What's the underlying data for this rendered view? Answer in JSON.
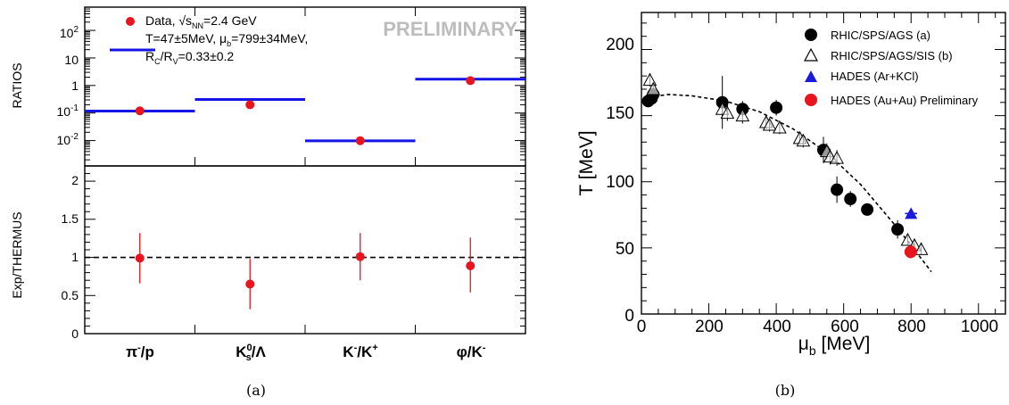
{
  "figure": {
    "caption_a": "(a)",
    "caption_b": "(b)"
  },
  "chart_data": [
    {
      "id": "a",
      "type": "scatter",
      "panels": [
        {
          "name": "ratios",
          "ylabel": "RATIOS",
          "yscale": "log",
          "ylim": [
            0.0012,
            700
          ],
          "ytick_labels": [
            "10^-2",
            "10^-1",
            "1",
            "10",
            "10^2"
          ],
          "categories": [
            "π⁻/p",
            "K⁰s/Λ",
            "K⁻/K⁺",
            "φ/K⁻"
          ],
          "legend": {
            "entry": "Data, √s_NN=2.4 GeV",
            "fit_line1": "T=47±5MeV, μ_b=799±34MeV,",
            "fit_line2": "R_C/R_V=0.33±0.2",
            "placement": "top-left"
          },
          "watermark": "PRELIMINARY",
          "series": [
            {
              "name": "Data",
              "values": [
                0.12,
                0.2,
                0.0099,
                1.5
              ],
              "color": "#e8141e"
            },
            {
              "name": "THERMUS",
              "values": [
                0.118,
                0.31,
                0.0098,
                1.7
              ],
              "color": "#1414e6"
            }
          ],
          "extra_line": {
            "value": 22,
            "category": 0
          }
        },
        {
          "name": "ratio_to_model",
          "ylabel": "Exp/THERMUS",
          "ylim": [
            0,
            2.2
          ],
          "ytick_labels": [
            "0",
            "0.5",
            "1",
            "1.5",
            "2"
          ],
          "reference_line": 1,
          "series": [
            {
              "name": "Exp/THERMUS",
              "values": [
                0.99,
                0.65,
                1.01,
                0.89
              ],
              "err_low": [
                0.33,
                0.33,
                0.31,
                0.35
              ],
              "err_high": [
                0.33,
                0.33,
                0.31,
                0.37
              ],
              "color": "#e8141e"
            }
          ],
          "xtick_labels": [
            "π⁻/p",
            "K⁰s/Λ",
            "K⁻/K⁺",
            "φ/K⁻"
          ]
        }
      ]
    },
    {
      "id": "b",
      "type": "scatter",
      "xlabel": "μ_b [MeV]",
      "ylabel": "T [MeV]",
      "xlim": [
        0,
        1080
      ],
      "ylim": [
        0,
        228
      ],
      "xtick_labels": [
        "0",
        "200",
        "400",
        "600",
        "800",
        "1000"
      ],
      "ytick_labels": [
        "0",
        "50",
        "100",
        "150",
        "200"
      ],
      "legend_placement": "top-right",
      "series": [
        {
          "name": "RHIC/SPS/AGS (a)",
          "marker": "filled-circle",
          "color": "#000000",
          "points": [
            [
              20,
              161
            ],
            [
              30,
              163
            ],
            [
              35,
              166
            ],
            [
              240,
              160
            ],
            [
              300,
              155
            ],
            [
              400,
              156
            ],
            [
              540,
              124
            ],
            [
              580,
              94
            ],
            [
              620,
              87
            ],
            [
              670,
              79
            ],
            [
              760,
              64
            ]
          ],
          "yerr": [
            3,
            4,
            4,
            20,
            6,
            6,
            10,
            10,
            6,
            4,
            7
          ]
        },
        {
          "name": "RHIC/SPS/AGS/SIS (b)",
          "marker": "open-triangle",
          "color": "#000000",
          "points": [
            [
              25,
              177
            ],
            [
              35,
              170
            ],
            [
              240,
              155
            ],
            [
              255,
              152
            ],
            [
              300,
              150
            ],
            [
              370,
              145
            ],
            [
              380,
              143
            ],
            [
              410,
              141
            ],
            [
              470,
              133
            ],
            [
              480,
              131
            ],
            [
              550,
              123
            ],
            [
              560,
              119
            ],
            [
              580,
              118
            ],
            [
              790,
              56
            ],
            [
              810,
              52
            ],
            [
              830,
              49
            ]
          ],
          "yerr": [
            5,
            5,
            6,
            6,
            6,
            5,
            5,
            5,
            5,
            5,
            6,
            6,
            6,
            4,
            4,
            4
          ]
        },
        {
          "name": "HADES (Ar+KCl)",
          "marker": "filled-triangle",
          "color": "#1a1adc",
          "points": [
            [
              800,
              76
            ]
          ],
          "xerr": [
            18
          ],
          "yerr": [
            2
          ]
        },
        {
          "name": "HADES (Au+Au) Preliminary",
          "marker": "filled-circle",
          "color": "#e8141e",
          "points": [
            [
              799,
              47
            ]
          ],
          "yerr": [
            5
          ]
        }
      ],
      "curve": {
        "name": "freeze-out fit",
        "style": "dashed",
        "points": [
          [
            20,
            164
          ],
          [
            80,
            166
          ],
          [
            150,
            165
          ],
          [
            250,
            161
          ],
          [
            350,
            153
          ],
          [
            450,
            140
          ],
          [
            550,
            122
          ],
          [
            650,
            98
          ],
          [
            750,
            68
          ],
          [
            800,
            52
          ],
          [
            860,
            32
          ]
        ]
      }
    }
  ]
}
